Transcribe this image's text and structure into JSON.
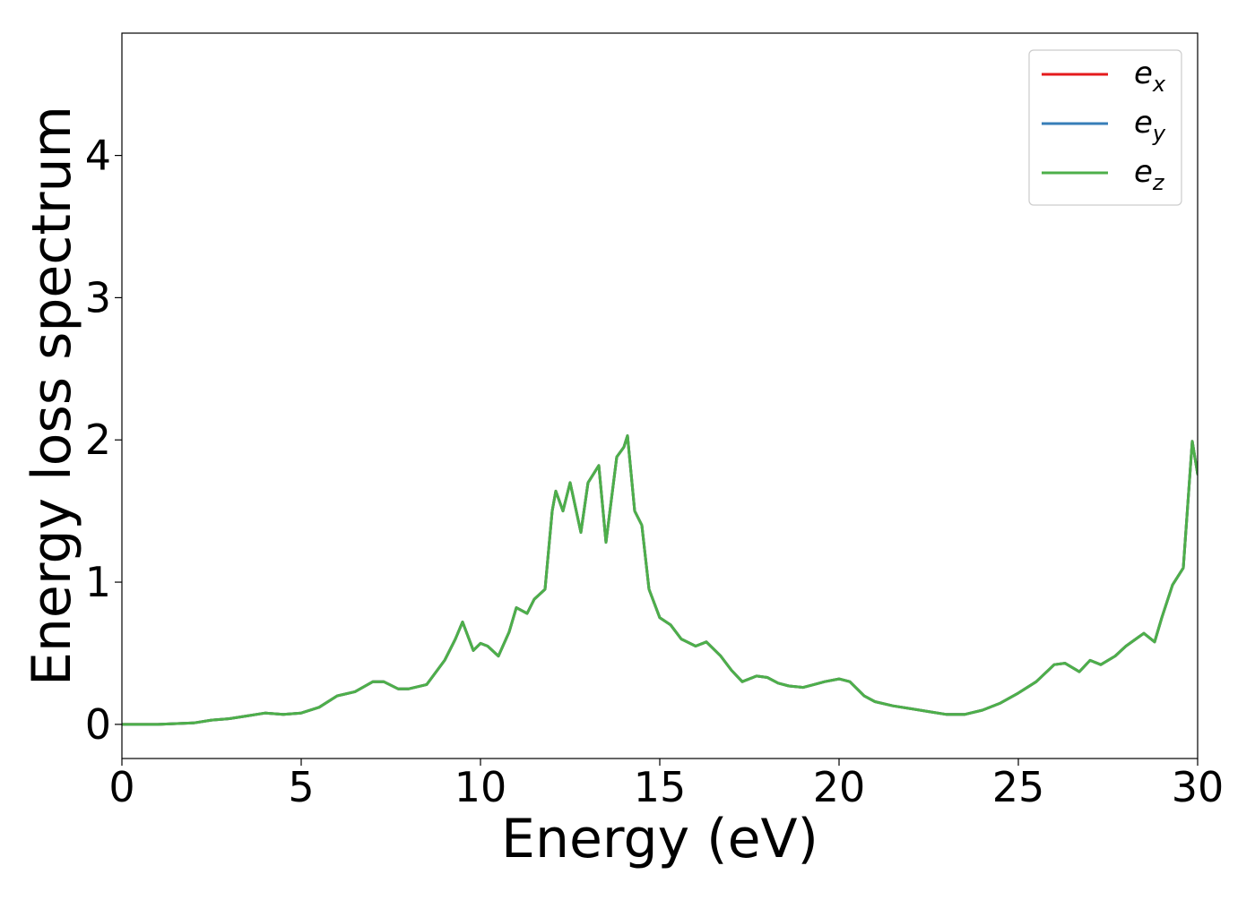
{
  "chart_data": {
    "type": "line",
    "xlabel": "Energy (eV)",
    "ylabel": "Energy loss spectrum",
    "xlim": [
      0,
      30
    ],
    "ylim": [
      -0.24,
      4.86
    ],
    "x_ticks": [
      0,
      5,
      10,
      15,
      20,
      25,
      30
    ],
    "y_ticks": [
      0,
      1,
      2,
      3,
      4
    ],
    "grid": false,
    "legend_position": "top-right",
    "legend": [
      {
        "base": "e",
        "sub": "x",
        "color": "#e41a1c"
      },
      {
        "base": "e",
        "sub": "y",
        "color": "#377eb8"
      },
      {
        "base": "e",
        "sub": "z",
        "color": "#4daf4a"
      }
    ],
    "x": [
      0,
      1,
      2,
      2.5,
      3,
      3.5,
      4,
      4.5,
      5,
      5.5,
      6,
      6.5,
      7,
      7.3,
      7.7,
      8,
      8.5,
      9,
      9.3,
      9.5,
      9.8,
      10,
      10.2,
      10.5,
      10.8,
      11,
      11.3,
      11.5,
      11.8,
      12,
      12.1,
      12.3,
      12.5,
      12.8,
      13,
      13.3,
      13.5,
      13.8,
      14,
      14.1,
      14.3,
      14.5,
      14.7,
      15,
      15.3,
      15.6,
      16,
      16.3,
      16.7,
      17,
      17.3,
      17.7,
      18,
      18.3,
      18.6,
      19,
      19.3,
      19.6,
      20,
      20.3,
      20.7,
      21,
      21.5,
      22,
      22.5,
      23,
      23.5,
      24,
      24.5,
      25,
      25.5,
      26,
      26.3,
      26.7,
      27,
      27.3,
      27.7,
      28,
      28.5,
      28.8,
      29,
      29.3,
      29.6,
      29.85,
      30
    ],
    "series": [
      {
        "values": [
          0,
          0,
          0.01,
          0.03,
          0.04,
          0.06,
          0.08,
          0.07,
          0.08,
          0.12,
          0.2,
          0.23,
          0.3,
          0.3,
          0.25,
          0.25,
          0.28,
          0.45,
          0.6,
          0.72,
          0.52,
          0.57,
          0.55,
          0.48,
          0.65,
          0.82,
          0.78,
          0.88,
          0.95,
          1.5,
          1.64,
          1.5,
          1.7,
          1.35,
          1.7,
          1.82,
          1.28,
          1.88,
          1.95,
          2.03,
          1.5,
          1.4,
          0.95,
          0.75,
          0.7,
          0.6,
          0.55,
          0.58,
          0.48,
          0.38,
          0.3,
          0.34,
          0.33,
          0.29,
          0.27,
          0.26,
          0.28,
          0.3,
          0.32,
          0.3,
          0.2,
          0.16,
          0.13,
          0.11,
          0.09,
          0.07,
          0.07,
          0.1,
          0.15,
          0.22,
          0.3,
          0.42,
          0.43,
          0.37,
          0.45,
          0.42,
          0.48,
          0.55,
          0.64,
          0.58,
          0.75,
          0.98,
          1.1,
          1.99,
          1.76
        ]
      },
      {
        "values": [
          0,
          0,
          0.01,
          0.03,
          0.04,
          0.06,
          0.08,
          0.07,
          0.08,
          0.12,
          0.2,
          0.23,
          0.3,
          0.3,
          0.25,
          0.25,
          0.28,
          0.45,
          0.6,
          0.72,
          0.52,
          0.57,
          0.55,
          0.48,
          0.65,
          0.82,
          0.78,
          0.88,
          0.95,
          1.5,
          1.64,
          1.5,
          1.7,
          1.35,
          1.7,
          1.82,
          1.28,
          1.88,
          1.95,
          2.03,
          1.5,
          1.4,
          0.95,
          0.75,
          0.7,
          0.6,
          0.55,
          0.58,
          0.48,
          0.38,
          0.3,
          0.34,
          0.33,
          0.29,
          0.27,
          0.26,
          0.28,
          0.3,
          0.32,
          0.3,
          0.2,
          0.16,
          0.13,
          0.11,
          0.09,
          0.07,
          0.07,
          0.1,
          0.15,
          0.22,
          0.3,
          0.42,
          0.43,
          0.37,
          0.45,
          0.42,
          0.48,
          0.55,
          0.64,
          0.58,
          0.75,
          0.98,
          1.1,
          1.99,
          1.76
        ]
      },
      {
        "values": [
          0,
          0,
          0.01,
          0.03,
          0.04,
          0.06,
          0.08,
          0.07,
          0.08,
          0.12,
          0.2,
          0.23,
          0.3,
          0.3,
          0.25,
          0.25,
          0.28,
          0.45,
          0.6,
          0.72,
          0.52,
          0.57,
          0.55,
          0.48,
          0.65,
          0.82,
          0.78,
          0.88,
          0.95,
          1.5,
          1.64,
          1.5,
          1.7,
          1.35,
          1.7,
          1.82,
          1.28,
          1.88,
          1.95,
          2.03,
          1.5,
          1.4,
          0.95,
          0.75,
          0.7,
          0.6,
          0.55,
          0.58,
          0.48,
          0.38,
          0.3,
          0.34,
          0.33,
          0.29,
          0.27,
          0.26,
          0.28,
          0.3,
          0.32,
          0.3,
          0.2,
          0.16,
          0.13,
          0.11,
          0.09,
          0.07,
          0.07,
          0.1,
          0.15,
          0.22,
          0.3,
          0.42,
          0.43,
          0.37,
          0.45,
          0.42,
          0.48,
          0.55,
          0.64,
          0.58,
          0.75,
          0.98,
          1.1,
          1.99,
          1.76
        ]
      }
    ]
  }
}
